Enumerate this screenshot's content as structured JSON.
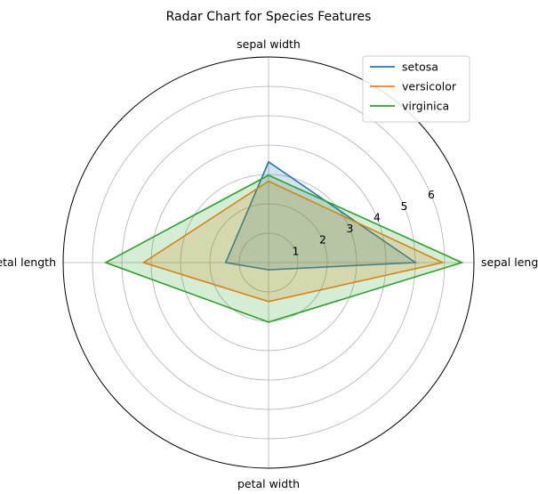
{
  "chart_data": {
    "type": "radar",
    "title": "Radar Chart for Species Features",
    "axes": [
      "sepal length",
      "sepal width",
      "petal length",
      "petal width"
    ],
    "r_ticks": [
      1,
      2,
      3,
      4,
      5,
      6
    ],
    "r_max": 7.0,
    "grid": true,
    "legend_position": "top-right",
    "series": [
      {
        "name": "setosa",
        "color": "#1f77b4",
        "values": [
          5.006,
          3.428,
          1.462,
          0.246
        ]
      },
      {
        "name": "versicolor",
        "color": "#ff7f0e",
        "values": [
          5.936,
          2.77,
          4.26,
          1.326
        ]
      },
      {
        "name": "virginica",
        "color": "#2ca02c",
        "values": [
          6.588,
          2.974,
          5.552,
          2.026
        ]
      }
    ]
  }
}
